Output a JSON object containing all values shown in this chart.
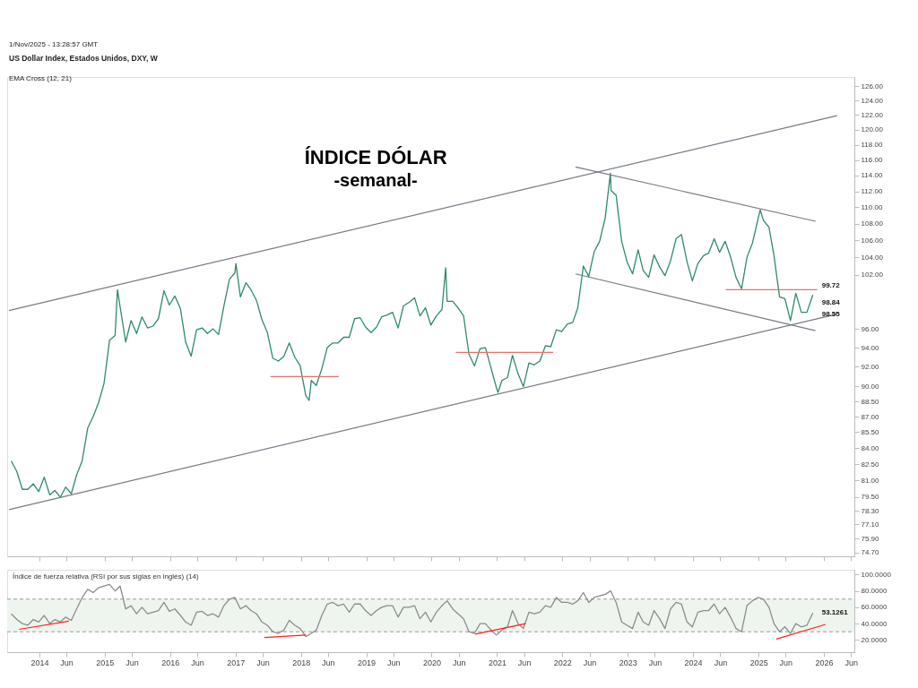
{
  "chart_data": [
    {
      "type": "line",
      "title": "ÍNDICE DÓLAR",
      "subtitle": "-semanal-",
      "annotations": [
        "1/Nov/2025 - 13:28:57 GMT",
        "US Dollar Index, Estados Unidos, DXY, W",
        "EMA Cross (12, 21)",
        {
          "text": "99.72",
          "x": "2025-10-31",
          "y": 99.72
        },
        {
          "text": "98.84",
          "x": "2025-10-31",
          "y": 98.84
        },
        {
          "text": "98.55",
          "x": "2025-10-31",
          "y": 98.55
        }
      ],
      "series": [
        {
          "color": "#2e8b6a",
          "x": [
            "2013-07-28",
            "2013-08-28",
            "2013-09-28",
            "2013-10-28",
            "2013-11-28",
            "2013-12-28",
            "2014-01-28",
            "2014-02-28",
            "2014-03-28",
            "2014-04-28",
            "2014-05-28",
            "2014-06-28",
            "2014-07-28",
            "2014-08-28",
            "2014-09-28",
            "2014-10-28",
            "2014-11-28",
            "2014-12-28",
            "2015-01-28",
            "2015-02-28",
            "2015-03-13",
            "2015-03-28",
            "2015-04-28",
            "2015-05-28",
            "2015-06-28",
            "2015-07-28",
            "2015-08-28",
            "2015-09-28",
            "2015-10-28",
            "2015-11-28",
            "2015-12-28",
            "2016-01-28",
            "2016-02-28",
            "2016-03-28",
            "2016-04-28",
            "2016-05-28",
            "2016-06-28",
            "2016-07-28",
            "2016-08-28",
            "2016-09-28",
            "2016-10-28",
            "2016-11-28",
            "2016-12-28",
            "2017-01-03",
            "2017-01-28",
            "2017-02-28",
            "2017-03-28",
            "2017-04-28",
            "2017-05-28",
            "2017-06-28",
            "2017-07-28",
            "2017-08-28",
            "2017-09-28",
            "2017-10-28",
            "2017-11-28",
            "2017-12-28",
            "2018-01-28",
            "2018-02-16",
            "2018-02-28",
            "2018-03-28",
            "2018-04-28",
            "2018-05-28",
            "2018-06-28",
            "2018-07-28",
            "2018-08-28",
            "2018-09-28",
            "2018-10-28",
            "2018-11-28",
            "2018-12-28",
            "2019-01-28",
            "2019-02-28",
            "2019-03-28",
            "2019-04-28",
            "2019-05-28",
            "2019-06-28",
            "2019-07-28",
            "2019-08-28",
            "2019-09-28",
            "2019-10-28",
            "2019-11-28",
            "2019-12-28",
            "2020-01-28",
            "2020-02-28",
            "2020-03-20",
            "2020-03-28",
            "2020-04-28",
            "2020-05-28",
            "2020-06-28",
            "2020-07-28",
            "2020-08-28",
            "2020-09-28",
            "2020-10-28",
            "2020-11-28",
            "2020-12-28",
            "2021-01-06",
            "2021-01-28",
            "2021-02-28",
            "2021-03-28",
            "2021-04-28",
            "2021-05-28",
            "2021-06-28",
            "2021-07-28",
            "2021-08-28",
            "2021-09-28",
            "2021-10-28",
            "2021-11-28",
            "2021-12-28",
            "2022-01-28",
            "2022-02-28",
            "2022-03-28",
            "2022-04-28",
            "2022-05-28",
            "2022-06-28",
            "2022-07-28",
            "2022-08-28",
            "2022-09-26",
            "2022-09-30",
            "2022-10-28",
            "2022-11-28",
            "2022-12-28",
            "2023-01-28",
            "2023-02-28",
            "2023-03-28",
            "2023-04-28",
            "2023-05-28",
            "2023-06-28",
            "2023-07-28",
            "2023-08-28",
            "2023-09-28",
            "2023-10-28",
            "2023-11-28",
            "2023-12-28",
            "2024-01-28",
            "2024-02-28",
            "2024-03-28",
            "2024-04-28",
            "2024-05-28",
            "2024-06-28",
            "2024-07-28",
            "2024-08-28",
            "2024-09-28",
            "2024-10-28",
            "2024-11-28",
            "2024-12-28",
            "2025-01-10",
            "2025-01-28",
            "2025-02-28",
            "2025-03-28",
            "2025-04-28",
            "2025-05-28",
            "2025-06-28",
            "2025-07-28",
            "2025-08-28",
            "2025-09-28",
            "2025-10-31"
          ],
          "values": [
            82.8,
            81.8,
            80.2,
            80.2,
            80.7,
            80.0,
            81.3,
            79.7,
            80.1,
            79.5,
            80.4,
            79.8,
            81.5,
            82.8,
            85.9,
            87.0,
            88.4,
            90.3,
            94.8,
            95.3,
            100.3,
            98.4,
            94.6,
            96.9,
            95.5,
            97.3,
            96.1,
            96.3,
            97.1,
            100.2,
            98.6,
            99.6,
            98.2,
            94.6,
            93.1,
            95.9,
            96.1,
            95.5,
            96.0,
            95.4,
            98.5,
            101.5,
            102.2,
            103.3,
            99.5,
            101.1,
            100.3,
            99.1,
            97.0,
            95.6,
            92.9,
            92.6,
            93.1,
            94.5,
            93.0,
            92.1,
            89.1,
            88.6,
            90.6,
            90.1,
            91.8,
            94.0,
            94.5,
            94.5,
            95.1,
            95.1,
            97.1,
            97.2,
            96.2,
            95.6,
            96.2,
            97.3,
            97.5,
            97.8,
            96.1,
            98.5,
            98.9,
            99.4,
            97.4,
            98.3,
            96.4,
            97.4,
            98.1,
            102.8,
            99.0,
            99.0,
            98.3,
            97.4,
            93.3,
            92.1,
            93.9,
            94.0,
            91.9,
            89.9,
            89.4,
            90.6,
            90.9,
            93.2,
            91.3,
            90.0,
            92.4,
            92.2,
            92.6,
            94.2,
            94.1,
            95.9,
            95.7,
            96.5,
            96.7,
            98.3,
            103.0,
            101.8,
            104.7,
            105.9,
            108.7,
            114.3,
            112.1,
            111.5,
            105.9,
            103.5,
            102.1,
            104.9,
            102.5,
            101.7,
            104.3,
            102.9,
            101.9,
            103.6,
            106.2,
            106.7,
            103.5,
            101.3,
            103.3,
            104.2,
            104.5,
            106.2,
            104.6,
            105.9,
            104.1,
            101.7,
            100.4,
            104.0,
            105.7,
            108.5,
            109.7,
            108.4,
            107.6,
            104.2,
            99.5,
            99.3,
            96.9,
            99.9,
            97.8,
            97.8,
            99.72
          ]
        },
        {
          "color": "#787b86",
          "x": [
            "2013-07-15",
            "2026-03-15"
          ],
          "values": [
            98.0,
            121.9
          ]
        },
        {
          "color": "#787b86",
          "x": [
            "2013-07-15",
            "2026-03-15"
          ],
          "values": [
            78.4,
            97.6
          ]
        },
        {
          "color": "#787b86",
          "x": [
            "2022-03-15",
            "2025-11-15"
          ],
          "values": [
            115.1,
            108.3
          ]
        },
        {
          "color": "#787b86",
          "x": [
            "2022-03-15",
            "2025-11-15"
          ],
          "values": [
            102.1,
            95.8
          ]
        },
        {
          "color": "#e57373",
          "x": [
            "2017-07-15",
            "2018-08-01"
          ],
          "values": [
            91.0,
            91.0
          ]
        },
        {
          "color": "#e57373",
          "x": [
            "2020-05-15",
            "2021-11-10"
          ],
          "values": [
            93.5,
            93.5
          ]
        },
        {
          "color": "#e57373",
          "x": [
            "2024-07-01",
            "2025-11-25"
          ],
          "values": [
            100.3,
            100.3
          ]
        }
      ],
      "xlim": [
        "2013-07-05",
        "2026-06-20"
      ],
      "xticks": [
        {
          "value": "2014-01-01",
          "label": null
        },
        {
          "value": "2014-06-01",
          "label": null
        },
        {
          "value": "2015-01-01",
          "label": null
        },
        {
          "value": "2015-06-01",
          "label": null
        },
        {
          "value": "2016-01-01",
          "label": null
        },
        {
          "value": "2016-06-01",
          "label": null
        },
        {
          "value": "2017-01-01",
          "label": null
        },
        {
          "value": "2017-06-01",
          "label": null
        },
        {
          "value": "2018-01-01",
          "label": null
        },
        {
          "value": "2018-06-01",
          "label": null
        },
        {
          "value": "2019-01-01",
          "label": null
        },
        {
          "value": "2019-06-01",
          "label": null
        },
        {
          "value": "2020-01-01",
          "label": null
        },
        {
          "value": "2020-06-01",
          "label": null
        },
        {
          "value": "2021-01-01",
          "label": null
        },
        {
          "value": "2021-06-01",
          "label": null
        },
        {
          "value": "2022-01-01",
          "label": null
        },
        {
          "value": "2022-06-01",
          "label": null
        },
        {
          "value": "2023-01-01",
          "label": null
        },
        {
          "value": "2023-06-01",
          "label": null
        },
        {
          "value": "2024-01-01",
          "label": null
        },
        {
          "value": "2024-06-01",
          "label": null
        },
        {
          "value": "2025-01-01",
          "label": null
        },
        {
          "value": "2025-06-01",
          "label": null
        },
        {
          "value": "2026-01-01",
          "label": null
        },
        {
          "value": "2026-06-01",
          "label": null
        }
      ],
      "ylim": [
        74.4,
        127.3
      ],
      "yticks": [
        {
          "value": 126,
          "label": "126.00"
        },
        {
          "value": 124,
          "label": "124.00"
        },
        {
          "value": 122,
          "label": "122.00"
        },
        {
          "value": 120,
          "label": "120.00"
        },
        {
          "value": 118,
          "label": "118.00"
        },
        {
          "value": 116,
          "label": "116.00"
        },
        {
          "value": 114,
          "label": "114.00"
        },
        {
          "value": 112,
          "label": "112.00"
        },
        {
          "value": 110,
          "label": "110.00"
        },
        {
          "value": 108,
          "label": "108.00"
        },
        {
          "value": 106,
          "label": "106.00"
        },
        {
          "value": 104,
          "label": "104.00"
        },
        {
          "value": 102,
          "label": "102.00"
        },
        {
          "value": 96,
          "label": "96.00"
        },
        {
          "value": 94,
          "label": "94.00"
        },
        {
          "value": 92,
          "label": "92.00"
        },
        {
          "value": 90,
          "label": "90.00"
        },
        {
          "value": 88.5,
          "label": "88.50"
        },
        {
          "value": 87,
          "label": "87.00"
        },
        {
          "value": 85.5,
          "label": "85.50"
        },
        {
          "value": 84,
          "label": "84.00"
        },
        {
          "value": 82.5,
          "label": "82.50"
        },
        {
          "value": 81,
          "label": "81.00"
        },
        {
          "value": 79.5,
          "label": "79.50"
        },
        {
          "value": 78.3,
          "label": "78.30"
        },
        {
          "value": 77.1,
          "label": "77.10"
        },
        {
          "value": 75.9,
          "label": "75.90"
        },
        {
          "value": 74.7,
          "label": "74.70"
        }
      ],
      "log": true,
      "tick_labels": "y",
      "grid": false
    },
    {
      "type": "line",
      "title": "Índice de fuerza relativa (RSI por sus siglas en inglés) (14)",
      "annotations": [
        {
          "text": "53.1261",
          "x": "2025-10-31",
          "y": 53.1261
        }
      ],
      "series": [
        {
          "color": "#8c8c8c",
          "x": [
            "2013-07-28",
            "2013-08-28",
            "2013-09-28",
            "2013-10-28",
            "2013-11-28",
            "2013-12-28",
            "2014-01-28",
            "2014-02-28",
            "2014-03-28",
            "2014-04-28",
            "2014-05-28",
            "2014-06-28",
            "2014-07-28",
            "2014-08-28",
            "2014-09-28",
            "2014-10-28",
            "2014-11-28",
            "2014-12-28",
            "2015-01-28",
            "2015-02-28",
            "2015-03-28",
            "2015-04-28",
            "2015-05-28",
            "2015-06-28",
            "2015-07-28",
            "2015-08-28",
            "2015-09-28",
            "2015-10-28",
            "2015-11-28",
            "2015-12-28",
            "2016-01-28",
            "2016-02-28",
            "2016-03-28",
            "2016-04-28",
            "2016-05-28",
            "2016-06-28",
            "2016-07-28",
            "2016-08-28",
            "2016-09-28",
            "2016-10-28",
            "2016-11-28",
            "2016-12-28",
            "2017-01-28",
            "2017-02-28",
            "2017-03-28",
            "2017-04-28",
            "2017-05-28",
            "2017-06-28",
            "2017-07-28",
            "2017-08-28",
            "2017-09-28",
            "2017-10-28",
            "2017-11-28",
            "2017-12-28",
            "2018-01-28",
            "2018-02-28",
            "2018-03-28",
            "2018-04-28",
            "2018-05-28",
            "2018-06-28",
            "2018-07-28",
            "2018-08-28",
            "2018-09-28",
            "2018-10-28",
            "2018-11-28",
            "2018-12-28",
            "2019-01-28",
            "2019-02-28",
            "2019-03-28",
            "2019-04-28",
            "2019-05-28",
            "2019-06-28",
            "2019-07-28",
            "2019-08-28",
            "2019-09-28",
            "2019-10-28",
            "2019-11-28",
            "2019-12-28",
            "2020-01-28",
            "2020-02-28",
            "2020-03-28",
            "2020-04-28",
            "2020-05-28",
            "2020-06-28",
            "2020-07-28",
            "2020-08-28",
            "2020-09-28",
            "2020-10-28",
            "2020-11-28",
            "2020-12-28",
            "2021-01-28",
            "2021-02-28",
            "2021-03-28",
            "2021-04-28",
            "2021-05-28",
            "2021-06-28",
            "2021-07-28",
            "2021-08-28",
            "2021-09-28",
            "2021-10-28",
            "2021-11-28",
            "2021-12-28",
            "2022-01-28",
            "2022-02-28",
            "2022-03-28",
            "2022-04-28",
            "2022-05-28",
            "2022-06-28",
            "2022-07-28",
            "2022-08-28",
            "2022-09-28",
            "2022-10-28",
            "2022-11-28",
            "2022-12-28",
            "2023-01-28",
            "2023-02-28",
            "2023-03-28",
            "2023-04-28",
            "2023-05-28",
            "2023-06-28",
            "2023-07-28",
            "2023-08-28",
            "2023-09-28",
            "2023-10-28",
            "2023-11-28",
            "2023-12-28",
            "2024-01-28",
            "2024-02-28",
            "2024-03-28",
            "2024-04-28",
            "2024-05-28",
            "2024-06-28",
            "2024-07-28",
            "2024-08-28",
            "2024-09-28",
            "2024-10-28",
            "2024-11-28",
            "2024-12-28",
            "2025-01-28",
            "2025-02-28",
            "2025-03-28",
            "2025-04-28",
            "2025-05-28",
            "2025-06-28",
            "2025-07-28",
            "2025-08-28",
            "2025-09-28",
            "2025-10-31"
          ],
          "values": [
            52,
            45,
            40,
            38,
            45,
            42,
            50,
            40,
            45,
            42,
            48,
            44,
            58,
            72,
            82,
            78,
            84,
            86,
            88,
            80,
            86,
            58,
            62,
            52,
            60,
            52,
            54,
            56,
            66,
            55,
            58,
            50,
            42,
            38,
            54,
            55,
            50,
            52,
            48,
            62,
            70,
            72,
            58,
            62,
            56,
            52,
            42,
            38,
            30,
            28,
            32,
            44,
            38,
            34,
            24,
            28,
            32,
            50,
            64,
            66,
            62,
            64,
            54,
            64,
            64,
            56,
            50,
            56,
            60,
            62,
            62,
            48,
            60,
            60,
            62,
            46,
            54,
            42,
            54,
            62,
            68,
            58,
            52,
            46,
            30,
            28,
            40,
            40,
            32,
            26,
            32,
            36,
            56,
            40,
            34,
            54,
            52,
            54,
            62,
            60,
            72,
            66,
            66,
            64,
            68,
            78,
            66,
            72,
            74,
            76,
            80,
            66,
            42,
            38,
            34,
            54,
            42,
            38,
            56,
            46,
            34,
            58,
            66,
            64,
            42,
            36,
            54,
            56,
            56,
            64,
            52,
            60,
            48,
            34,
            30,
            62,
            68,
            72,
            70,
            60,
            40,
            30,
            36,
            28,
            40,
            36,
            38,
            53.1261
          ]
        },
        {
          "color": "#ff1f1f",
          "x": [
            "2013-09-10",
            "2014-06-15"
          ],
          "values": [
            33,
            43
          ]
        },
        {
          "color": "#ff1f1f",
          "x": [
            "2017-06-10",
            "2018-01-30"
          ],
          "values": [
            23,
            26
          ]
        },
        {
          "color": "#ff1f1f",
          "x": [
            "2020-09-01",
            "2021-06-10"
          ],
          "values": [
            27,
            40
          ]
        },
        {
          "color": "#ff1f1f",
          "x": [
            "2025-04-10",
            "2026-01-10"
          ],
          "values": [
            21,
            39
          ]
        }
      ],
      "ref_lines": [
        {
          "axis": "y",
          "value": 70,
          "label": null,
          "color": "#9a9a9a",
          "line_style": "dashed"
        },
        {
          "axis": "y",
          "value": 30,
          "label": null,
          "color": "#9a9a9a",
          "line_style": "dashed"
        }
      ],
      "bands": [
        {
          "axis": "y",
          "from": 30,
          "to": 70,
          "label": null,
          "color": "#eef5ee"
        }
      ],
      "xlim": [
        "2013-07-05",
        "2026-06-20"
      ],
      "xticks": [
        {
          "value": "2014-01-01",
          "label": "2014"
        },
        {
          "value": "2014-06-01",
          "label": "Jun"
        },
        {
          "value": "2015-01-01",
          "label": "2015"
        },
        {
          "value": "2015-06-01",
          "label": "Jun"
        },
        {
          "value": "2016-01-01",
          "label": "2016"
        },
        {
          "value": "2016-06-01",
          "label": "Jun"
        },
        {
          "value": "2017-01-01",
          "label": "2017"
        },
        {
          "value": "2017-06-01",
          "label": "Jun"
        },
        {
          "value": "2018-01-01",
          "label": "2018"
        },
        {
          "value": "2018-06-01",
          "label": "Jun"
        },
        {
          "value": "2019-01-01",
          "label": "2019"
        },
        {
          "value": "2019-06-01",
          "label": "Jun"
        },
        {
          "value": "2020-01-01",
          "label": "2020"
        },
        {
          "value": "2020-06-01",
          "label": "Jun"
        },
        {
          "value": "2021-01-01",
          "label": "2021"
        },
        {
          "value": "2021-06-01",
          "label": "Jun"
        },
        {
          "value": "2022-01-01",
          "label": "2022"
        },
        {
          "value": "2022-06-01",
          "label": "Jun"
        },
        {
          "value": "2023-01-01",
          "label": "2023"
        },
        {
          "value": "2023-06-01",
          "label": "Jun"
        },
        {
          "value": "2024-01-01",
          "label": "2024"
        },
        {
          "value": "2024-06-01",
          "label": "Jun"
        },
        {
          "value": "2025-01-01",
          "label": "2025"
        },
        {
          "value": "2025-06-01",
          "label": "Jun"
        },
        {
          "value": "2026-01-01",
          "label": "2026"
        },
        {
          "value": "2026-06-01",
          "label": "Jun"
        }
      ],
      "ylim": [
        5,
        106
      ],
      "yticks": [
        {
          "value": 20,
          "label": "20.0000"
        },
        {
          "value": 40,
          "label": "40.0000"
        },
        {
          "value": 60,
          "label": "60.0000"
        },
        {
          "value": 80,
          "label": "80.0000"
        },
        {
          "value": 100,
          "label": "100.0000"
        }
      ],
      "grid": false
    }
  ]
}
